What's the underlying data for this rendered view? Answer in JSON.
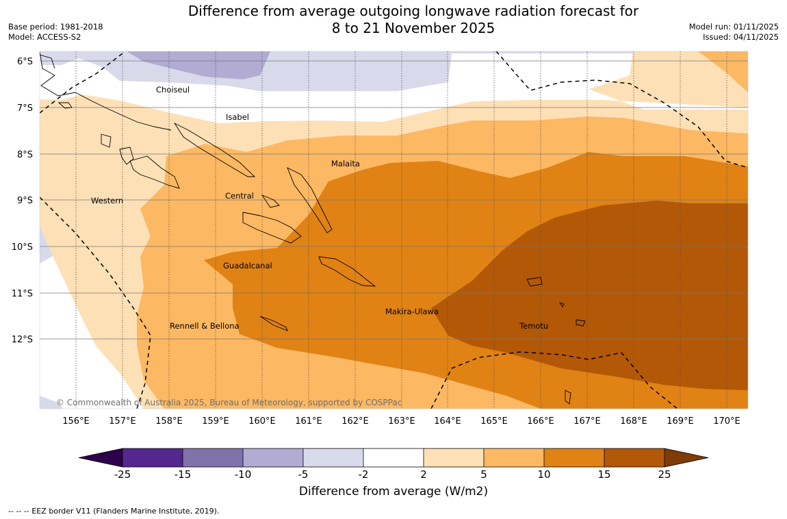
{
  "title": {
    "line1": "Difference from average outgoing longwave radiation forecast for",
    "line2": "8 to 21 November 2025"
  },
  "meta_left": {
    "base_period": "Base period: 1981-2018",
    "model": "Model: ACCESS-S2"
  },
  "meta_right": {
    "model_run": "Model run: 01/11/2025",
    "issued": "Issued: 04/11/2025"
  },
  "map": {
    "lat_labels": [
      "6°S",
      "7°S",
      "8°S",
      "9°S",
      "10°S",
      "11°S",
      "12°S"
    ],
    "lon_labels": [
      "156°E",
      "157°E",
      "158°E",
      "159°E",
      "160°E",
      "161°E",
      "162°E",
      "163°E",
      "164°E",
      "165°E",
      "166°E",
      "167°E",
      "168°E",
      "169°E",
      "170°E"
    ],
    "province_labels": [
      "Choiseul",
      "Isabel",
      "Malaita",
      "Western",
      "Central",
      "Guadalcanal",
      "Makira-Ulawa",
      "Rennell & Bellona",
      "Temotu"
    ],
    "copyright": "© Commonwealth of Australia 2025, Bureau of Meteorology, supported by COSPPac"
  },
  "colorbar": {
    "ticks": [
      "-25",
      "-15",
      "-10",
      "-5",
      "-2",
      "2",
      "5",
      "10",
      "15",
      "25"
    ],
    "colors": [
      "#54278f",
      "#8073ac",
      "#b2abd2",
      "#d8daeb",
      "#ffffff",
      "#fee0b6",
      "#fdb863",
      "#e08214",
      "#b35806"
    ],
    "under_color": "#2d004b",
    "over_color": "#7f3b08",
    "label": "Difference from average (W/m2)"
  },
  "footer": "--  --  -- EEZ border V11 (Flanders Marine Institute, 2019)."
}
